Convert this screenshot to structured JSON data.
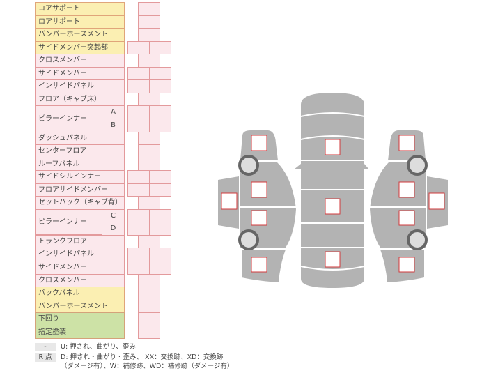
{
  "rows": [
    {
      "label": "コアサポート",
      "color": "yellow",
      "cols": 1
    },
    {
      "label": "ロアサポート",
      "color": "yellow",
      "cols": 1
    },
    {
      "label": "バンパーホースメント",
      "color": "yellow",
      "cols": 1
    },
    {
      "label": "サイドメンバー突起部",
      "color": "yellow",
      "cols": 2
    },
    {
      "label": "クロスメンバー",
      "color": "pink",
      "cols": 1
    },
    {
      "label": "サイドメンバー",
      "color": "pink",
      "cols": 2
    },
    {
      "label": "インサイドパネル",
      "color": "pink",
      "cols": 2
    },
    {
      "label": "フロア（キャブ床）",
      "color": "pink",
      "cols": 1
    },
    {
      "label": "ピラーインナー",
      "color": "pink",
      "cols": 2,
      "sub": "A"
    },
    {
      "label": "",
      "color": "pink",
      "cols": 2,
      "sub": "B"
    },
    {
      "label": "ダッシュパネル",
      "color": "pink",
      "cols": 1
    },
    {
      "label": "センターフロア",
      "color": "pink",
      "cols": 1
    },
    {
      "label": "ルーフパネル",
      "color": "pink",
      "cols": 1
    },
    {
      "label": "サイドシルインナー",
      "color": "pink",
      "cols": 2
    },
    {
      "label": "フロアサイドメンバー",
      "color": "pink",
      "cols": 2
    },
    {
      "label": "セットバック（キャブ背）",
      "color": "pink",
      "cols": 1
    },
    {
      "label": "ピラーインナー",
      "color": "pink",
      "cols": 2,
      "sub": "C"
    },
    {
      "label": "",
      "color": "pink",
      "cols": 2,
      "sub": "D"
    },
    {
      "label": "トランクフロア",
      "color": "pink",
      "cols": 1
    },
    {
      "label": "インサイドパネル",
      "color": "pink",
      "cols": 2
    },
    {
      "label": "サイドメンバー",
      "color": "pink",
      "cols": 2
    },
    {
      "label": "クロスメンバー",
      "color": "pink",
      "cols": 1
    },
    {
      "label": "バックパネル",
      "color": "yellow",
      "cols": 1
    },
    {
      "label": "バンパーホースメント",
      "color": "yellow",
      "cols": 1
    },
    {
      "label": "下回り",
      "color": "green",
      "cols": 1
    },
    {
      "label": "指定塗装",
      "color": "green",
      "cols": 1
    }
  ],
  "legend": {
    "dash_tag": "-",
    "dash_text": "U: 押され、曲がり、歪み",
    "r_tag": "R 点",
    "r_text_1": "D: 押され・曲がり・歪み、 XX：交換跡、XD：交換跡",
    "r_text_2": "（ダメージ有）、W：補修跡、WD：補修跡（ダメージ有）"
  },
  "colors": {
    "body": "#b3b3b3",
    "marker": "#d0393b",
    "pink": "#fbe8ec",
    "yellow": "#fbefb2",
    "green": "#cde2a6"
  }
}
